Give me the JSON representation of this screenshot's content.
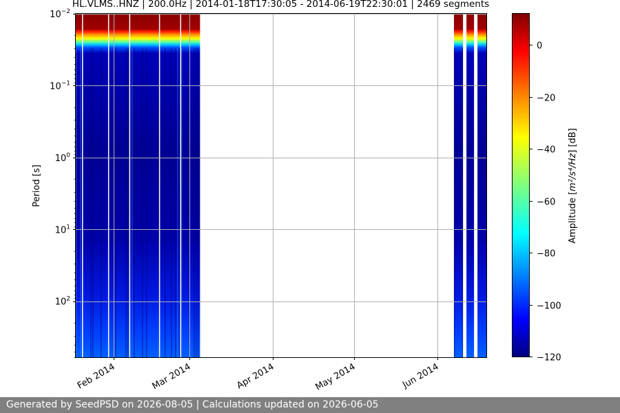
{
  "chart_data": {
    "type": "heatmap",
    "title": "HL.VLMS..HNZ | 200.0Hz | 2014-01-18T17:30:05 - 2014-06-19T22:30:01 | 2469 segments",
    "xlabel": "",
    "ylabel": "Period [s]",
    "y_scale": "log",
    "y_inverted": true,
    "y_range": [
      0.01,
      600
    ],
    "x_range": [
      "2014-01-18",
      "2014-06-19"
    ],
    "x_ticks": [
      {
        "date": "2014-02-01",
        "label": "Feb 2014"
      },
      {
        "date": "2014-03-01",
        "label": "Mar 2014"
      },
      {
        "date": "2014-04-01",
        "label": "Apr 2014"
      },
      {
        "date": "2014-05-01",
        "label": "May 2014"
      },
      {
        "date": "2014-06-01",
        "label": "Jun 2014"
      }
    ],
    "y_ticks": [
      {
        "value": 0.01,
        "label_base": "10",
        "label_exp": "−2"
      },
      {
        "value": 0.1,
        "label_base": "10",
        "label_exp": "−1"
      },
      {
        "value": 1,
        "label_base": "10",
        "label_exp": "0"
      },
      {
        "value": 10,
        "label_base": "10",
        "label_exp": "1"
      },
      {
        "value": 100,
        "label_base": "10",
        "label_exp": "2"
      }
    ],
    "grid": true,
    "data_intervals": [
      {
        "start": "2014-01-18",
        "end": "2014-03-05"
      },
      {
        "start": "2014-06-07",
        "end": "2014-06-19"
      }
    ],
    "colorbar": {
      "label_prefix": "Amplitude [",
      "label_unit": "m²/s⁴/Hz",
      "label_suffix": "] [dB]",
      "min": -120,
      "max": 12,
      "ticks": [
        0,
        -20,
        -40,
        -60,
        -80,
        -100,
        -120
      ],
      "tick_labels": [
        "0",
        "−20",
        "−40",
        "−60",
        "−80",
        "−100",
        "−120"
      ],
      "colormap": "jet"
    }
  },
  "footer": {
    "text": "Generated by SeedPSD on 2026-08-05 | Calculations updated on 2026-06-05"
  }
}
